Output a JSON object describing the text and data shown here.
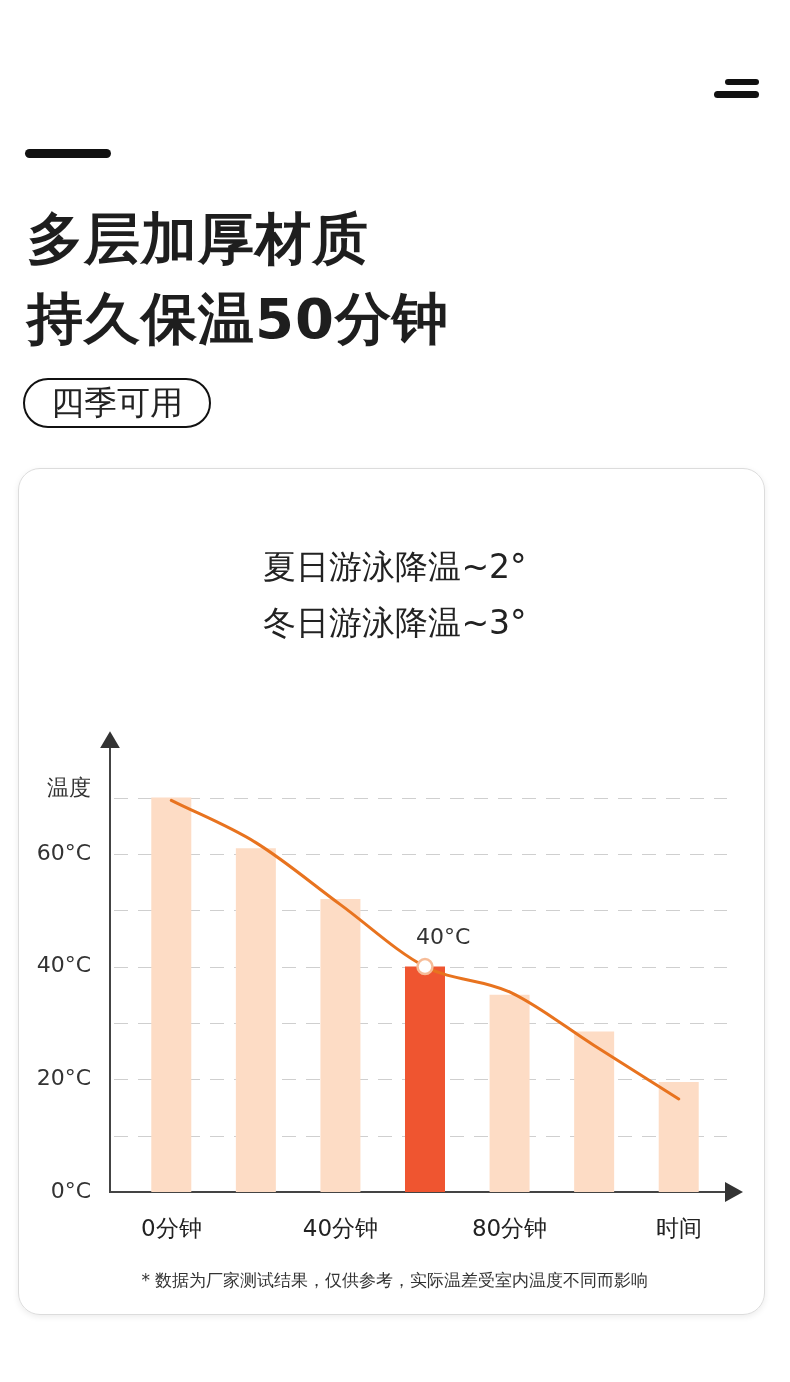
{
  "chart_data": {
    "type": "bar",
    "title": "多层加厚材质",
    "subtitle": "持久保温50分钟",
    "annotations": [
      "四季可用",
      "夏日游泳降温~2°",
      "冬日游泳降温~3°",
      "* 数据为厂家测试结果，仅供参考，实际温差受室内温度不同而影响"
    ],
    "xlabel": "时间",
    "ylabel": "温度",
    "categories": [
      "0分钟",
      null,
      "40分钟",
      null,
      "80分钟",
      null,
      null
    ],
    "series": [
      {
        "colors": [
          "#fddcc5",
          "#fddcc5",
          "#fddcc5",
          "#ef5530",
          "#fddcc5",
          "#fddcc5",
          "#fddcc5"
        ],
        "values": [
          70,
          61,
          52,
          40,
          35,
          28.5,
          19.5
        ]
      },
      {
        "type": "line",
        "color": "#e8731f",
        "values": [
          69.5,
          62,
          51,
          40,
          35.5,
          26,
          16.5
        ],
        "marker": "none"
      },
      {
        "type": "scatter",
        "color": "#f6bc98",
        "values": [
          null,
          null,
          null,
          40,
          null,
          null,
          null
        ],
        "value_labels": [
          null,
          null,
          null,
          "40°C",
          null,
          null,
          null
        ],
        "marker": "circle"
      }
    ],
    "ylim": [
      0,
      80
    ],
    "yticks": [
      {
        "value": 0,
        "label": "0°C"
      },
      {
        "value": 10,
        "label": null
      },
      {
        "value": 20,
        "label": "20°C"
      },
      {
        "value": 30,
        "label": null
      },
      {
        "value": 40,
        "label": "40°C"
      },
      {
        "value": 50,
        "label": null
      },
      {
        "value": 60,
        "label": "60°C"
      },
      {
        "value": 70,
        "label": null
      }
    ],
    "grid": "y"
  }
}
